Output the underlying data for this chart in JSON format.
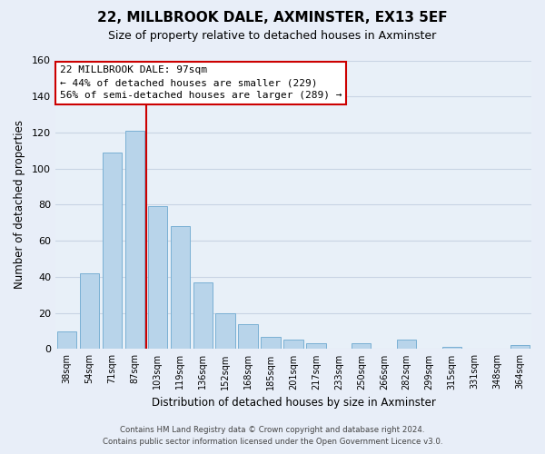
{
  "title": "22, MILLBROOK DALE, AXMINSTER, EX13 5EF",
  "subtitle": "Size of property relative to detached houses in Axminster",
  "xlabel": "Distribution of detached houses by size in Axminster",
  "ylabel": "Number of detached properties",
  "bar_labels": [
    "38sqm",
    "54sqm",
    "71sqm",
    "87sqm",
    "103sqm",
    "119sqm",
    "136sqm",
    "152sqm",
    "168sqm",
    "185sqm",
    "201sqm",
    "217sqm",
    "233sqm",
    "250sqm",
    "266sqm",
    "282sqm",
    "299sqm",
    "315sqm",
    "331sqm",
    "348sqm",
    "364sqm"
  ],
  "bar_values": [
    10,
    42,
    109,
    121,
    79,
    68,
    37,
    20,
    14,
    7,
    5,
    3,
    0,
    3,
    0,
    5,
    0,
    1,
    0,
    0,
    2
  ],
  "bar_color": "#b8d4ea",
  "bar_edge_color": "#7ab0d4",
  "vline_color": "#cc0000",
  "annotation_title": "22 MILLBROOK DALE: 97sqm",
  "annotation_line1": "← 44% of detached houses are smaller (229)",
  "annotation_line2": "56% of semi-detached houses are larger (289) →",
  "annotation_box_color": "#ffffff",
  "annotation_box_edge": "#cc0000",
  "ylim": [
    0,
    160
  ],
  "yticks": [
    0,
    20,
    40,
    60,
    80,
    100,
    120,
    140,
    160
  ],
  "footer_line1": "Contains HM Land Registry data © Crown copyright and database right 2024.",
  "footer_line2": "Contains public sector information licensed under the Open Government Licence v3.0.",
  "bg_color": "#e8eef8",
  "plot_bg_color": "#e8f0f8",
  "grid_color": "#c8d4e4"
}
